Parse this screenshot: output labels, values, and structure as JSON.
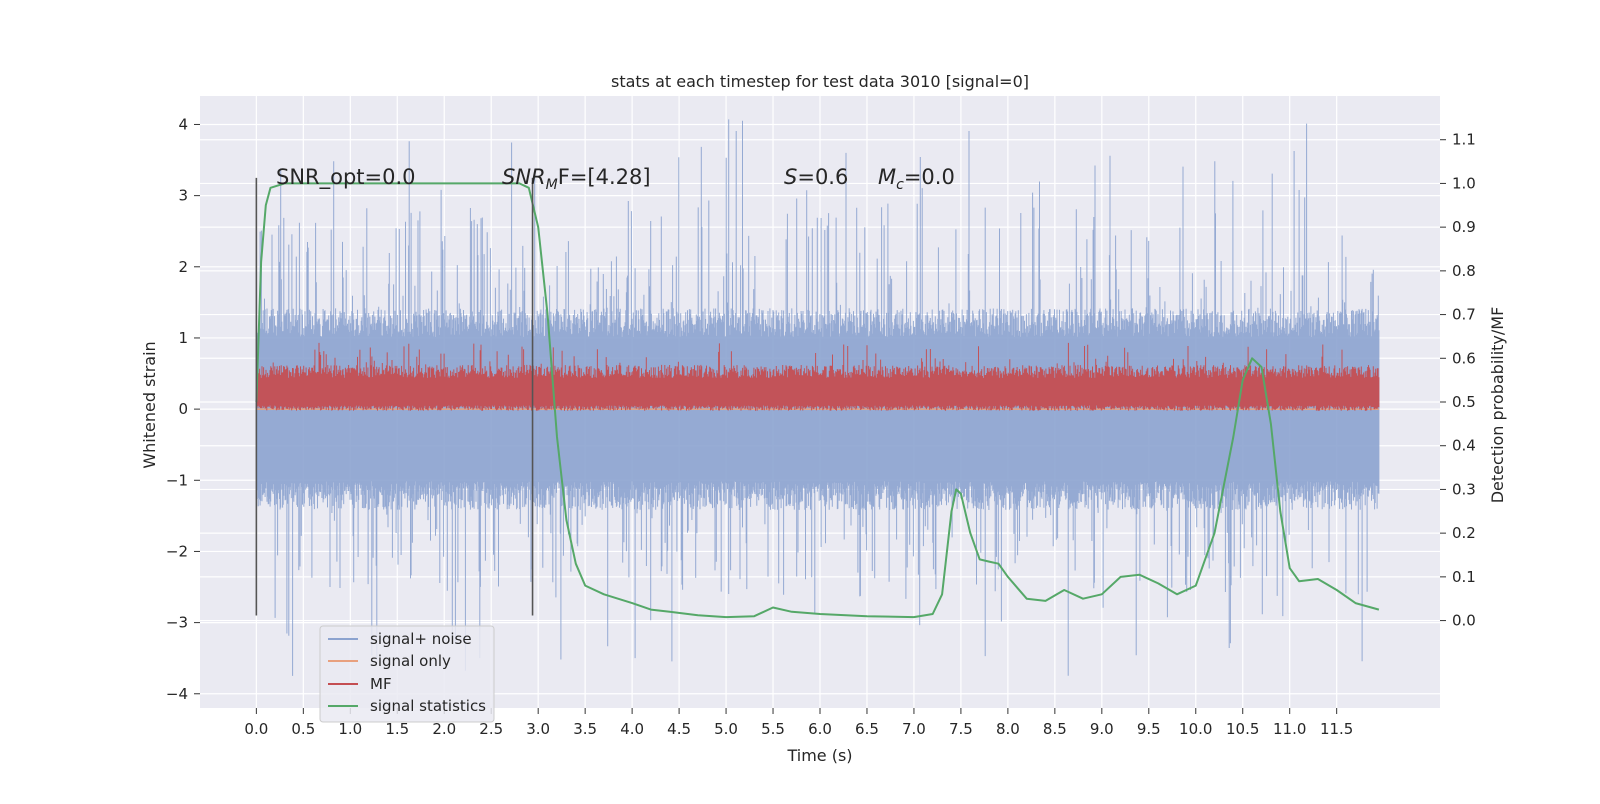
{
  "chart_data": {
    "type": "line",
    "title": "stats at each timestep for test data 3010 [signal=0]",
    "xlabel": "Time (s)",
    "ylabel": "Whitened strain",
    "y2label": "Detection probability/MF",
    "xlim": [
      -0.6,
      12.6
    ],
    "ylim": [
      -4.2,
      4.4
    ],
    "y2lim": [
      -0.2,
      1.2
    ],
    "xticks": [
      0.0,
      0.5,
      1.0,
      1.5,
      2.0,
      2.5,
      3.0,
      3.5,
      4.0,
      4.5,
      5.0,
      5.5,
      6.0,
      6.5,
      7.0,
      7.5,
      8.0,
      8.5,
      9.0,
      9.5,
      10.0,
      10.5,
      11.0,
      11.5
    ],
    "xtick_labels": [
      "0.0",
      "0.5",
      "1.0",
      "1.5",
      "2.0",
      "2.5",
      "3.0",
      "3.5",
      "4.0",
      "4.5",
      "5.0",
      "5.5",
      "6.0",
      "6.5",
      "7.0",
      "7.5",
      "8.0",
      "8.5",
      "9.0",
      "9.5",
      "10.0",
      "10.5",
      "11.0",
      "11.5"
    ],
    "yticks": [
      -4,
      -3,
      -2,
      -1,
      0,
      1,
      2,
      3,
      4
    ],
    "ytick_labels": [
      "−4",
      "−3",
      "−2",
      "−1",
      "0",
      "1",
      "2",
      "3",
      "4"
    ],
    "y2ticks": [
      0.0,
      0.1,
      0.2,
      0.3,
      0.4,
      0.5,
      0.6,
      0.7,
      0.8,
      0.9,
      1.0,
      1.1
    ],
    "y2tick_labels": [
      "0.0",
      "0.1",
      "0.2",
      "0.3",
      "0.4",
      "0.5",
      "0.6",
      "0.7",
      "0.8",
      "0.9",
      "1.0",
      "1.1"
    ],
    "grid": true,
    "legend_position": "bottom-left",
    "annotations": {
      "snr_opt": "SNR_opt=0.0",
      "snr_mf_sym": "SNR",
      "snr_mf_sub": "M",
      "snr_mf_tail": "F=[4.28]",
      "s_sym": "S",
      "s_val": "=0.6",
      "mc_sym": "M",
      "mc_sub": "c",
      "mc_val": "=0.0"
    },
    "vlines": [
      {
        "x": 0.0,
        "y_range": [
          -2.9,
          3.25
        ],
        "color": "#555555"
      },
      {
        "x": 2.94,
        "y_range": [
          -2.9,
          3.25
        ],
        "color": "#555555"
      }
    ],
    "series": [
      {
        "name": "signal+ noise",
        "color": "#8ca3cf",
        "axis": "left",
        "x_range": [
          0.0,
          11.95
        ],
        "typical_range": [
          -1.35,
          1.35
        ],
        "extreme_range": [
          -3.75,
          4.1
        ]
      },
      {
        "name": "signal only",
        "color": "#e8a07e",
        "axis": "left",
        "x": [
          0.0,
          11.95
        ],
        "y": [
          0.0,
          0.0
        ]
      },
      {
        "name": "MF",
        "color": "#c44e52",
        "axis": "right",
        "x_range": [
          0.0,
          11.95
        ],
        "typical_range": [
          0.48,
          0.57
        ],
        "extreme_range": [
          0.48,
          0.64
        ]
      },
      {
        "name": "signal statistics",
        "color": "#55a868",
        "axis": "right",
        "x": [
          0.0,
          0.05,
          0.1,
          0.15,
          0.3,
          0.5,
          1.0,
          1.5,
          2.0,
          2.5,
          2.7,
          2.8,
          2.9,
          3.0,
          3.1,
          3.2,
          3.3,
          3.4,
          3.5,
          3.7,
          4.0,
          4.2,
          4.4,
          4.7,
          5.0,
          5.3,
          5.5,
          5.7,
          6.0,
          6.5,
          7.0,
          7.2,
          7.3,
          7.4,
          7.45,
          7.5,
          7.6,
          7.7,
          7.8,
          7.9,
          8.0,
          8.2,
          8.4,
          8.6,
          8.8,
          9.0,
          9.2,
          9.4,
          9.6,
          9.8,
          10.0,
          10.2,
          10.4,
          10.5,
          10.6,
          10.7,
          10.8,
          10.9,
          11.0,
          11.1,
          11.3,
          11.5,
          11.7,
          11.95
        ],
        "y": [
          0.5,
          0.82,
          0.95,
          0.99,
          1.0,
          1.0,
          1.0,
          1.0,
          1.0,
          1.0,
          1.0,
          1.0,
          0.99,
          0.9,
          0.7,
          0.42,
          0.23,
          0.13,
          0.08,
          0.06,
          0.04,
          0.025,
          0.02,
          0.012,
          0.008,
          0.01,
          0.03,
          0.02,
          0.015,
          0.01,
          0.008,
          0.015,
          0.06,
          0.25,
          0.3,
          0.29,
          0.2,
          0.14,
          0.135,
          0.13,
          0.1,
          0.05,
          0.045,
          0.07,
          0.05,
          0.06,
          0.1,
          0.105,
          0.085,
          0.06,
          0.08,
          0.2,
          0.42,
          0.55,
          0.6,
          0.58,
          0.45,
          0.25,
          0.12,
          0.09,
          0.095,
          0.07,
          0.04,
          0.025
        ]
      }
    ]
  }
}
